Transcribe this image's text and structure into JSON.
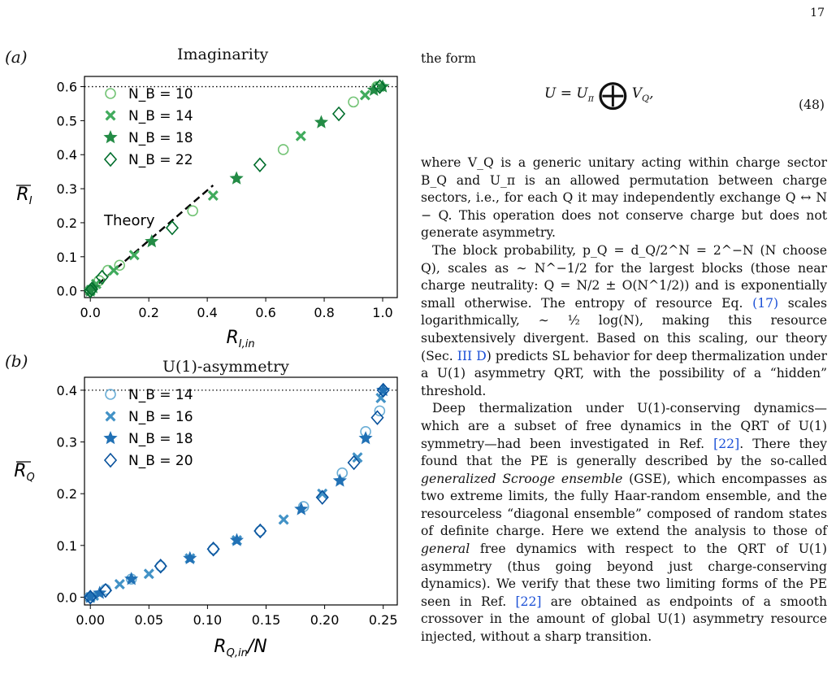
{
  "page_number": "17",
  "panel_a": {
    "letter": "(a)",
    "title": "Imaginarity",
    "xlabel": "R",
    "xlabel_sub": "I,in",
    "ylabel": "R",
    "ylabel_sub": "I",
    "theory_label": "Theory",
    "xticks": [
      "0.0",
      "0.2",
      "0.4",
      "0.6",
      "0.8",
      "1.0"
    ],
    "yticks": [
      "0.0",
      "0.1",
      "0.2",
      "0.3",
      "0.4",
      "0.5",
      "0.6"
    ],
    "legend": [
      "N_B = 10",
      "N_B = 14",
      "N_B = 18",
      "N_B = 22"
    ]
  },
  "panel_b": {
    "letter": "(b)",
    "title": "U(1)-asymmetry",
    "xlabel": "R",
    "xlabel_sub": "Q,in",
    "xlabel_suffix": "/N",
    "ylabel": "R",
    "ylabel_sub": "Q",
    "xticks": [
      "0.00",
      "0.05",
      "0.10",
      "0.15",
      "0.20",
      "0.25"
    ],
    "yticks": [
      "0.0",
      "0.1",
      "0.2",
      "0.3",
      "0.4"
    ],
    "legend": [
      "N_B = 14",
      "N_B = 16",
      "N_B = 18",
      "N_B = 20"
    ]
  },
  "chart_data": [
    {
      "type": "scatter",
      "title": "Imaginarity",
      "xlabel": "R_I,in",
      "ylabel": "R̄_I",
      "xlim": [
        -0.02,
        1.05
      ],
      "ylim": [
        -0.02,
        0.63
      ],
      "reference_line": {
        "y": 0.6,
        "style": "dotted"
      },
      "theory_line": {
        "x": [
          0.0,
          0.42
        ],
        "y": [
          0.0,
          0.31
        ],
        "style": "dashed"
      },
      "series": [
        {
          "name": "N_B = 10",
          "marker": "circle-open",
          "color": "#74c476",
          "x": [
            0.0,
            0.03,
            0.06,
            0.1,
            0.35,
            0.66,
            0.9,
            0.98
          ],
          "y": [
            0.0,
            0.03,
            0.06,
            0.075,
            0.235,
            0.415,
            0.555,
            0.6
          ]
        },
        {
          "name": "N_B = 14",
          "marker": "x-filled",
          "color": "#41ab5d",
          "x": [
            0.0,
            0.02,
            0.08,
            0.15,
            0.42,
            0.72,
            0.94,
            0.99
          ],
          "y": [
            0.0,
            0.02,
            0.06,
            0.105,
            0.28,
            0.455,
            0.575,
            0.6
          ]
        },
        {
          "name": "N_B = 18",
          "marker": "star",
          "color": "#238b45",
          "x": [
            0.0,
            0.01,
            0.21,
            0.5,
            0.79,
            0.97,
            1.0
          ],
          "y": [
            0.0,
            0.01,
            0.145,
            0.33,
            0.495,
            0.59,
            0.6
          ]
        },
        {
          "name": "N_B = 22",
          "marker": "diamond-open",
          "color": "#006d2c",
          "x": [
            0.0,
            0.005,
            0.04,
            0.28,
            0.58,
            0.85,
            0.99
          ],
          "y": [
            0.0,
            0.005,
            0.04,
            0.185,
            0.37,
            0.52,
            0.6
          ]
        }
      ]
    },
    {
      "type": "scatter",
      "title": "U(1)-asymmetry",
      "xlabel": "R_Q,in/N",
      "ylabel": "R̄_Q",
      "xlim": [
        -0.005,
        0.262
      ],
      "ylim": [
        -0.015,
        0.425
      ],
      "reference_line": {
        "y": 0.4,
        "style": "dotted"
      },
      "series": [
        {
          "name": "N_B = 14",
          "marker": "circle-open",
          "color": "#6baed6",
          "x": [
            0.0,
            0.013,
            0.035,
            0.06,
            0.105,
            0.145,
            0.182,
            0.215,
            0.235,
            0.247
          ],
          "y": [
            0.0,
            0.015,
            0.035,
            0.06,
            0.093,
            0.128,
            0.175,
            0.24,
            0.32,
            0.36
          ]
        },
        {
          "name": "N_B = 16",
          "marker": "x-filled",
          "color": "#4292c6",
          "x": [
            0.0,
            0.003,
            0.025,
            0.05,
            0.085,
            0.125,
            0.165,
            0.198,
            0.228,
            0.248
          ],
          "y": [
            0.0,
            0.003,
            0.025,
            0.045,
            0.075,
            0.11,
            0.15,
            0.2,
            0.27,
            0.385
          ]
        },
        {
          "name": "N_B = 18",
          "marker": "star",
          "color": "#2171b5",
          "x": [
            0.0,
            0.008,
            0.035,
            0.085,
            0.125,
            0.18,
            0.213,
            0.235,
            0.25
          ],
          "y": [
            0.0,
            0.008,
            0.035,
            0.075,
            0.11,
            0.17,
            0.225,
            0.307,
            0.4
          ]
        },
        {
          "name": "N_B = 20",
          "marker": "diamond-open",
          "color": "#08519c",
          "x": [
            0.0,
            0.013,
            0.06,
            0.105,
            0.145,
            0.198,
            0.225,
            0.245,
            0.25
          ],
          "y": [
            0.0,
            0.013,
            0.06,
            0.093,
            0.128,
            0.193,
            0.26,
            0.347,
            0.4
          ]
        }
      ]
    }
  ],
  "text": {
    "intro": "the form",
    "eq_number": "(48)",
    "p1": "where V_Q is a generic unitary acting within charge sector B_Q and U_π is an allowed permutation between charge sectors, i.e., for each Q it may independently exchange Q ↔ N − Q. This operation does not conserve charge but does not generate asymmetry.",
    "p2a": "The block probability, p_Q = d_Q/2^N = 2^−N (N choose Q), scales as ∼ N^−1/2 for the largest blocks (those near charge neutrality: Q = N/2 ± O(N^1/2)) and is exponentially small otherwise. The entropy of resource Eq. ",
    "p2_ref1": "(17)",
    "p2b": " scales logarithmically, ∼ ½ log(N), making this resource subextensively divergent. Based on this scaling, our theory (Sec. ",
    "p2_ref2": "III D",
    "p2c": ") predicts SL behavior for deep thermalization under a U(1) asymmetry QRT, with the possibility of a “hidden” threshold.",
    "p3a": "Deep thermalization under U(1)-conserving dynamics—which are a subset of free dynamics in the QRT of U(1) symmetry—had been investigated in Ref. ",
    "p3_ref1": "[22]",
    "p3b": ". There they found that the PE is generally described by the so-called ",
    "p3_em1": "generalized Scrooge ensemble",
    "p3c": " (GSE), which encompasses as two extreme limits, the fully Haar-random ensemble, and the resourceless “diagonal ensemble” composed of random states of definite charge. Here we extend the analysis to those of ",
    "p3_em2": "general",
    "p3d": " free dynamics with respect to the QRT of U(1) asymmetry (thus going beyond just charge-conserving dynamics). We verify that these two limiting forms of the PE seen in Ref. ",
    "p3_ref2": "[22]",
    "p3e": " are obtained as endpoints of a smooth crossover in the amount of global U(1) asymmetry resource injected, without a sharp transition."
  }
}
